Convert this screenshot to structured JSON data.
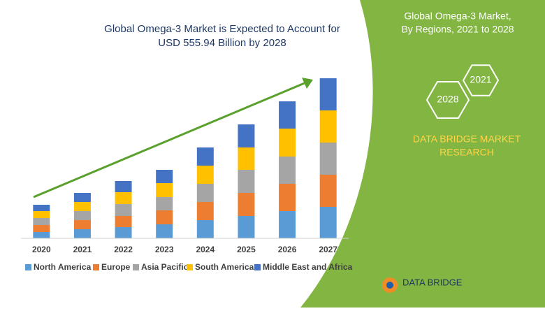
{
  "chart_data": {
    "type": "stacked-bar",
    "title": [
      "Global Omega-3 Market is Expected to Account for",
      "USD 555.94 Billion by 2028"
    ],
    "categories": [
      "2020",
      "2021",
      "2022",
      "2023",
      "2024",
      "2025",
      "2026",
      "2027"
    ],
    "series": [
      {
        "name": "North America",
        "color": "#5b9bd5",
        "values": [
          9,
          13,
          16,
          20,
          26,
          32,
          39,
          45
        ]
      },
      {
        "name": "Europe",
        "color": "#ed7d31",
        "values": [
          10,
          13,
          16,
          20,
          26,
          33,
          39,
          46
        ]
      },
      {
        "name": "Asia Pacific",
        "color": "#a5a5a5",
        "values": [
          10,
          13,
          17,
          19,
          26,
          33,
          39,
          46
        ]
      },
      {
        "name": "South America",
        "color": "#ffc000",
        "values": [
          10,
          13,
          17,
          20,
          26,
          32,
          40,
          46
        ]
      },
      {
        "name": "Middle East and Africa",
        "color": "#4472c4",
        "values": [
          9,
          13,
          16,
          19,
          26,
          33,
          39,
          46
        ]
      }
    ],
    "ylim": [
      0,
      240
    ]
  },
  "panel": {
    "title": [
      "Global Omega-3 Market,",
      "By Regions, 2021 to 2028"
    ],
    "hex_labels": [
      "2021",
      "2028"
    ],
    "research": [
      "DATA BRIDGE MARKET",
      "RESEARCH"
    ]
  },
  "logo": "DATA BRIDGE"
}
